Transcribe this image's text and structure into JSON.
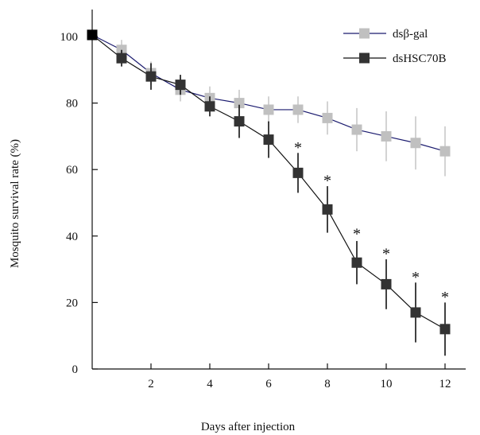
{
  "chart_data": {
    "type": "line",
    "title": "",
    "xlabel": "Days after injection",
    "ylabel": "Mosquito survival rate (%)",
    "xlim": [
      0,
      13
    ],
    "ylim": [
      0,
      110
    ],
    "x_ticks": [
      2,
      4,
      6,
      8,
      10,
      12
    ],
    "y_ticks": [
      0,
      20,
      40,
      60,
      80,
      100
    ],
    "grid": false,
    "legend_position": "top-right",
    "series": [
      {
        "name": "dsβ-gal",
        "marker_color": "#c0c0c0",
        "line_color": "#1a1a6e",
        "x": [
          0,
          1,
          2,
          3,
          4,
          5,
          6,
          7,
          8,
          9,
          10,
          11,
          12
        ],
        "y": [
          100.5,
          96,
          89,
          84,
          81.5,
          80,
          78,
          78,
          75.5,
          72,
          70,
          68,
          65.5
        ],
        "error": [
          0,
          3,
          3.5,
          3.5,
          3.5,
          4,
          4,
          4,
          5,
          6.5,
          7.5,
          8,
          7.5
        ]
      },
      {
        "name": "dsHSC70B",
        "marker_color": "#333333",
        "line_color": "#111111",
        "x": [
          0,
          1,
          2,
          3,
          4,
          5,
          6,
          7,
          8,
          9,
          10,
          11,
          12
        ],
        "y": [
          100.5,
          93.5,
          88,
          85.5,
          79,
          74.5,
          69,
          59,
          48,
          32,
          25.5,
          17,
          12
        ],
        "error": [
          0,
          2.5,
          4,
          3,
          3,
          5,
          5.5,
          6,
          7,
          6.5,
          7.5,
          9,
          8
        ]
      }
    ],
    "annotations": [
      {
        "text": "*",
        "x": 7,
        "y": 67
      },
      {
        "text": "*",
        "x": 8,
        "y": 57
      },
      {
        "text": "*",
        "x": 9,
        "y": 41
      },
      {
        "text": "*",
        "x": 10,
        "y": 35
      },
      {
        "text": "*",
        "x": 11,
        "y": 28
      },
      {
        "text": "*",
        "x": 12,
        "y": 22
      }
    ]
  }
}
